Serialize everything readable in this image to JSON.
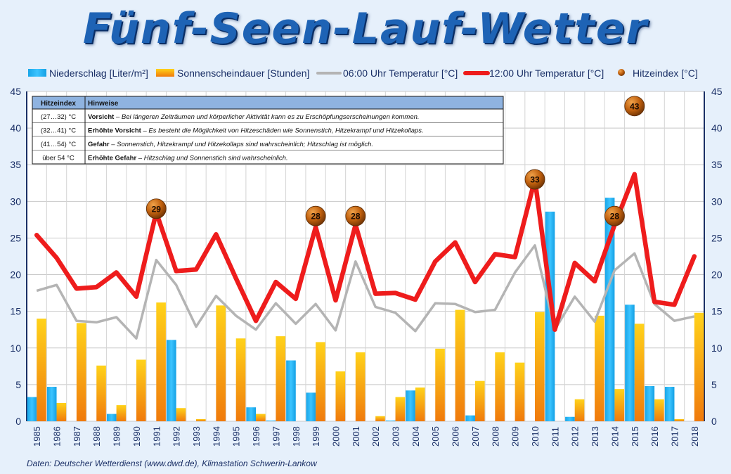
{
  "title": "Fünf-Seen-Lauf-Wetter",
  "source": "Daten: Deutscher Wetterdienst  (www.dwd.de),  Klimastation Schwerin-Lankow",
  "legend": {
    "precip": "Niederschlag [Liter/m²]",
    "sun": "Sonnenscheindauer [Stunden]",
    "t6": "06:00 Uhr Temperatur [°C]",
    "t12": "12:00 Uhr Temperatur [°C]",
    "heat": "Hitzeindex [°C]"
  },
  "colors": {
    "precip": "#1ab0f0",
    "sun": "#f28a10",
    "t6": "#b4b4b4",
    "t12": "#ee1c1c",
    "heat": "#b55a10",
    "axis": "#1a2f66"
  },
  "heat_table": {
    "headers": [
      "Hitzeindex",
      "Hinweise"
    ],
    "rows": [
      {
        "range": "(27…32) °C",
        "level": "Vorsicht",
        "text": " – Bei längeren Zeiträumen und körperlicher Aktivität kann es zu Erschöpfungserscheinungen kommen."
      },
      {
        "range": "(32…41) °C",
        "level": "Erhöhte Vorsicht",
        "text": " – Es besteht die Möglichkeit von Hitzeschäden wie Sonnenstich, Hitzekrampf und Hitzekollaps."
      },
      {
        "range": "(41…54) °C",
        "level": "Gefahr",
        "text": " – Sonnenstich, Hitzekrampf und Hitzekollaps sind wahrscheinlich; Hitzschlag ist möglich."
      },
      {
        "range": "über 54 °C",
        "level": "Erhöhte Gefahr",
        "text": " – Hitzschlag und Sonnenstich sind wahrscheinlich."
      }
    ]
  },
  "chart_data": {
    "type": "bar",
    "categories": [
      "1985",
      "1986",
      "1987",
      "1988",
      "1989",
      "1990",
      "1991",
      "1992",
      "1993",
      "1994",
      "1995",
      "1996",
      "1997",
      "1998",
      "1999",
      "2000",
      "2001",
      "2002",
      "2003",
      "2004",
      "2005",
      "2006",
      "2007",
      "2008",
      "2009",
      "2010",
      "2011",
      "2012",
      "2013",
      "2014",
      "2015",
      "2016",
      "2017",
      "2018"
    ],
    "ylim": [
      0,
      45
    ],
    "yticks": [
      0,
      5,
      10,
      15,
      20,
      25,
      30,
      35,
      40,
      45
    ],
    "grid": true,
    "legend_position": "top",
    "series": [
      {
        "name": "Niederschlag [Liter/m²]",
        "kind": "bar",
        "values": [
          3.3,
          4.7,
          0,
          0,
          1.0,
          0,
          0,
          11.1,
          0,
          0,
          0,
          1.9,
          0.1,
          8.3,
          3.9,
          0,
          0,
          0,
          0.1,
          4.2,
          0,
          0,
          0.8,
          0,
          0,
          0,
          28.6,
          0.6,
          0,
          30.5,
          15.9,
          4.8,
          4.7,
          0
        ]
      },
      {
        "name": "Sonnenscheindauer [Stunden]",
        "kind": "bar",
        "values": [
          14.0,
          2.5,
          13.4,
          7.6,
          2.2,
          8.4,
          16.2,
          1.8,
          0.3,
          15.8,
          11.3,
          1.0,
          11.6,
          0,
          10.8,
          6.8,
          9.4,
          0.7,
          3.3,
          4.6,
          9.9,
          15.2,
          5.5,
          9.4,
          8.0,
          14.9,
          0,
          3.0,
          14.4,
          4.4,
          13.3,
          3.0,
          0.3,
          14.8
        ]
      },
      {
        "name": "06:00 Uhr Temperatur [°C]",
        "kind": "line",
        "values": [
          17.8,
          18.6,
          13.7,
          13.5,
          14.2,
          11.3,
          22.0,
          18.6,
          12.9,
          17.1,
          14.4,
          12.5,
          16.1,
          13.3,
          16.0,
          12.4,
          21.8,
          15.6,
          14.8,
          12.3,
          16.1,
          16.0,
          14.9,
          15.2,
          20.3,
          24.0,
          12.5,
          17.0,
          13.6,
          20.6,
          22.9,
          16.0,
          13.7,
          14.3
        ]
      },
      {
        "name": "12:00 Uhr Temperatur [°C]",
        "kind": "line",
        "values": [
          25.4,
          22.3,
          18.1,
          18.3,
          20.3,
          17.0,
          28.5,
          20.5,
          20.7,
          25.5,
          19.5,
          13.7,
          19.0,
          16.7,
          26.5,
          16.5,
          26.8,
          17.4,
          17.5,
          16.6,
          21.8,
          24.4,
          19.0,
          22.8,
          22.4,
          33.0,
          12.5,
          21.6,
          19.1,
          26.8,
          33.7,
          16.3,
          15.9,
          22.5
        ]
      },
      {
        "name": "Hitzeindex [°C]",
        "kind": "marker",
        "values": [
          null,
          null,
          null,
          null,
          null,
          null,
          29,
          null,
          null,
          null,
          null,
          null,
          null,
          null,
          28,
          null,
          28,
          null,
          null,
          null,
          null,
          null,
          null,
          null,
          null,
          33,
          null,
          null,
          null,
          28,
          43,
          null,
          null,
          null
        ]
      }
    ]
  }
}
